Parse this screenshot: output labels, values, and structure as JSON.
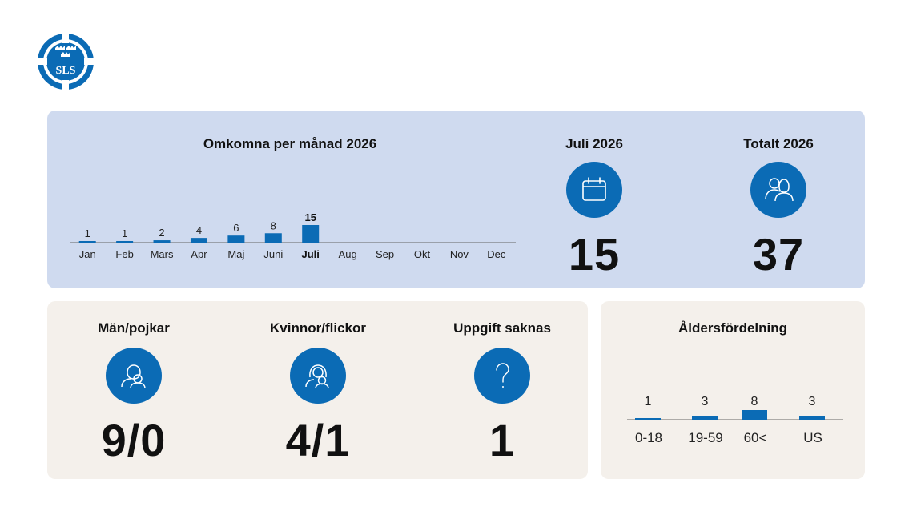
{
  "logo": {
    "text": "SLS"
  },
  "monthly": {
    "title": "Omkomna per månad 2026",
    "chart_data": {
      "type": "bar",
      "title": "Omkomna per månad 2026",
      "categories": [
        "Jan",
        "Feb",
        "Mars",
        "Apr",
        "Maj",
        "Juni",
        "Juli",
        "Aug",
        "Sep",
        "Okt",
        "Nov",
        "Dec"
      ],
      "values": [
        1,
        1,
        2,
        4,
        6,
        8,
        15,
        null,
        null,
        null,
        null,
        null
      ],
      "highlight": "Juli",
      "ylim": [
        0,
        15
      ],
      "grid": false,
      "color": "#0b6bb5"
    }
  },
  "current_month": {
    "title": "Juli 2026",
    "value": "15",
    "icon": "calendar-icon"
  },
  "total": {
    "title": "Totalt 2026",
    "value": "37",
    "icon": "people-icon"
  },
  "gender": {
    "men": {
      "title": "Män/pojkar",
      "value": "9/0",
      "icon": "man-boy-icon"
    },
    "women": {
      "title": "Kvinnor/flickor",
      "value": "4/1",
      "icon": "woman-girl-icon"
    },
    "unknown": {
      "title": "Uppgift saknas",
      "value": "1",
      "icon": "question-icon"
    }
  },
  "age": {
    "title": "Åldersfördelning",
    "chart_data": {
      "type": "bar",
      "title": "Åldersfördelning",
      "categories": [
        "0-18",
        "19-59",
        "60<",
        "US"
      ],
      "values": [
        1,
        3,
        8,
        3
      ],
      "ylim": [
        0,
        8
      ],
      "grid": false,
      "color": "#0b6bb5"
    }
  },
  "colors": {
    "accent": "#0b6bb5",
    "top_panel": "#cfdaef",
    "bottom_panel": "#f4f0eb"
  }
}
